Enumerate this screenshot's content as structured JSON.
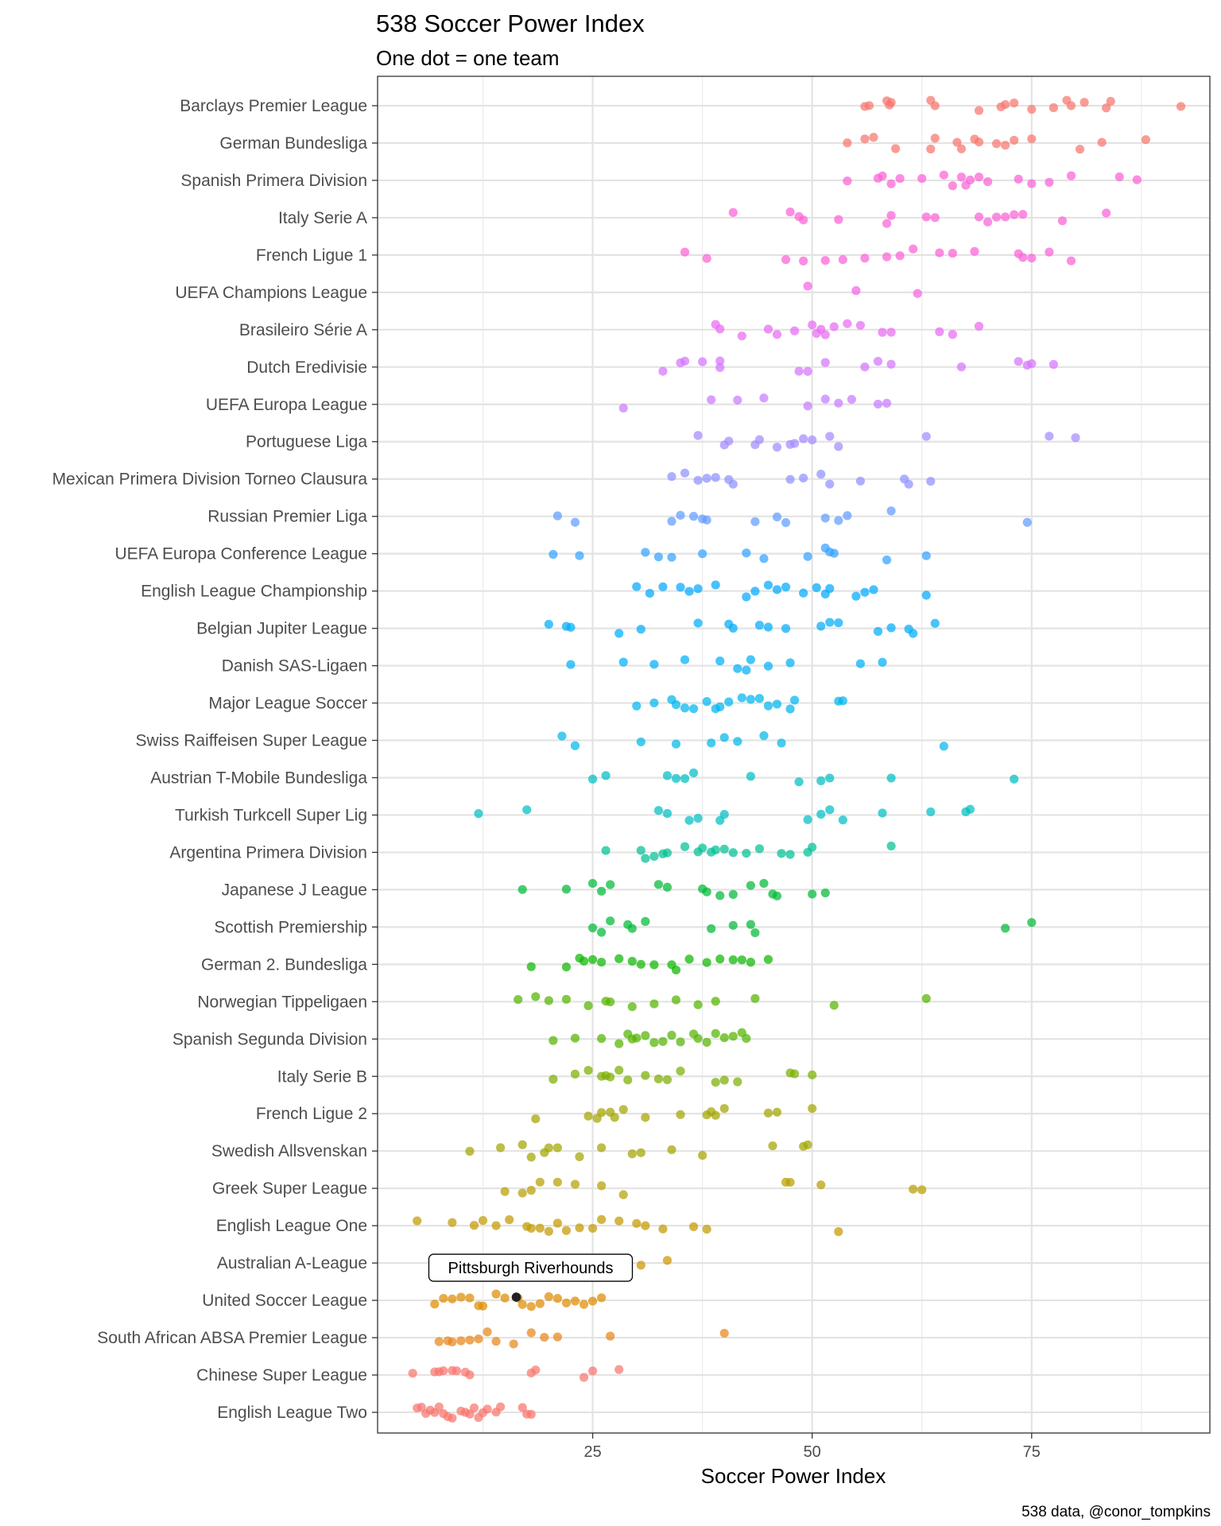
{
  "chart_data": {
    "type": "scatter",
    "title": "538 Soccer Power Index",
    "subtitle": "One dot = one team",
    "xlabel": "Soccer Power Index",
    "ylabel": "",
    "caption": "538 data, @conor_tompkins",
    "xlim": [
      0.5,
      95.3
    ],
    "xticks": [
      25,
      50,
      75
    ],
    "grid": true,
    "legend": "none",
    "annotation": {
      "text": "Pittsburgh Riverhounds",
      "league": "United Soccer League",
      "x": 16.3,
      "highlight_color": "#222222"
    },
    "categories": [
      {
        "name": "Barclays Premier League",
        "color": "#F8766D",
        "values": [
          56.5,
          56,
          58.5,
          59,
          58.8,
          64,
          63.5,
          69,
          71.5,
          72,
          73,
          75,
          77.5,
          79,
          79.5,
          81,
          83.5,
          84,
          92
        ]
      },
      {
        "name": "German Bundesliga",
        "color": "#F8766D",
        "values": [
          54,
          56,
          57,
          59.5,
          63.5,
          64,
          66.5,
          67,
          68.5,
          69,
          71,
          72,
          73,
          75,
          80.5,
          83,
          88
        ]
      },
      {
        "name": "Spanish Primera Division",
        "color": "#FB61D7",
        "values": [
          54,
          57.5,
          58,
          59,
          60,
          62.5,
          65,
          66,
          67,
          67.5,
          68,
          69,
          70,
          73.5,
          75,
          77,
          79.5,
          85,
          87
        ]
      },
      {
        "name": "Italy Serie A",
        "color": "#FB61D7",
        "values": [
          41,
          47.5,
          48.5,
          49,
          53,
          58.5,
          59,
          63,
          64,
          69,
          70,
          71,
          72,
          73,
          74,
          78.5,
          83.5
        ]
      },
      {
        "name": "French Ligue 1",
        "color": "#FB61D7",
        "values": [
          35.5,
          38,
          47,
          49,
          51.5,
          53.5,
          56,
          58.5,
          60,
          61.5,
          64.5,
          66,
          68.5,
          73.5,
          74,
          75,
          77,
          79.5
        ]
      },
      {
        "name": "UEFA Champions League",
        "color": "#F564E3",
        "values": [
          49.5,
          55,
          62
        ]
      },
      {
        "name": "Brasileiro Série A",
        "color": "#E76BF3",
        "values": [
          39.5,
          39,
          42,
          45,
          46,
          48,
          51,
          50,
          50.5,
          51.5,
          52.5,
          54,
          55.5,
          58,
          59,
          64.5,
          66,
          69
        ]
      },
      {
        "name": "Dutch Eredivisie",
        "color": "#D575FE",
        "values": [
          33,
          35,
          35.5,
          37.5,
          39.5,
          39.5,
          48.5,
          49.5,
          51.5,
          56,
          57.5,
          59,
          67,
          73.5,
          74.5,
          75,
          77.5
        ]
      },
      {
        "name": "UEFA Europa League",
        "color": "#C77CFF",
        "values": [
          28.5,
          38.5,
          41.5,
          44.5,
          49.5,
          51.5,
          53,
          54.5,
          57.5,
          58.5
        ]
      },
      {
        "name": "Portuguese Liga",
        "color": "#A58AFF",
        "values": [
          37,
          40,
          40.5,
          43.5,
          44,
          46,
          47.5,
          48,
          49,
          50,
          52,
          53,
          63,
          77,
          80
        ]
      },
      {
        "name": "Mexican Primera Division Torneo Clausura",
        "color": "#8F91FF",
        "values": [
          34,
          35.5,
          37,
          38,
          39,
          40.5,
          41,
          47.5,
          49,
          51,
          52,
          55.5,
          60.5,
          61,
          63.5
        ]
      },
      {
        "name": "Russian Premier Liga",
        "color": "#619CFF",
        "values": [
          21,
          23,
          34,
          35,
          36.5,
          37.5,
          38,
          43.5,
          46,
          47,
          51.5,
          53,
          54,
          59,
          74.5
        ]
      },
      {
        "name": "UEFA Europa Conference League",
        "color": "#35A2FF",
        "values": [
          20.5,
          23.5,
          31,
          32.5,
          34,
          37.5,
          42.5,
          44.5,
          49.5,
          51.5,
          52,
          52.5,
          58.5,
          63
        ]
      },
      {
        "name": "English League Championship",
        "color": "#00A9FF",
        "values": [
          30,
          31.5,
          33,
          35,
          36,
          37,
          39,
          42.5,
          43.5,
          45,
          46,
          47,
          49,
          50.5,
          51.5,
          52,
          55,
          56,
          57,
          63
        ]
      },
      {
        "name": "Belgian Jupiter League",
        "color": "#00ADFA",
        "values": [
          20,
          22,
          22.5,
          28,
          30.5,
          37,
          40.5,
          41,
          44,
          45,
          47,
          51,
          52,
          53,
          57.5,
          59,
          61,
          61.5,
          64
        ]
      },
      {
        "name": "Danish SAS-Ligaen",
        "color": "#00B0F6",
        "values": [
          22.5,
          28.5,
          32,
          35.5,
          39.5,
          41.5,
          42.5,
          43,
          45,
          47.5,
          55.5,
          58
        ]
      },
      {
        "name": "Major League Soccer",
        "color": "#00B5EE",
        "values": [
          30,
          32,
          34,
          34.5,
          35.5,
          36.5,
          38,
          39,
          39.5,
          40.5,
          42,
          43,
          44,
          45,
          46,
          47.5,
          48,
          53,
          53.5
        ]
      },
      {
        "name": "Swiss Raiffeisen Super League",
        "color": "#00B8E7",
        "values": [
          21.5,
          23,
          30.5,
          34.5,
          38.5,
          40,
          41.5,
          44.5,
          46.5,
          65
        ]
      },
      {
        "name": "Austrian T-Mobile Bundesliga",
        "color": "#00BFC4",
        "values": [
          25,
          26.5,
          33.5,
          34.5,
          35.5,
          36.5,
          43,
          48.5,
          51,
          52,
          59,
          73
        ]
      },
      {
        "name": "Turkish Turkcell Super Lig",
        "color": "#00BFC4",
        "values": [
          12,
          17.5,
          32.5,
          33.5,
          36,
          37,
          39.5,
          40,
          49.5,
          51,
          52,
          53.5,
          58,
          63.5,
          67.5,
          68
        ]
      },
      {
        "name": "Argentina Primera Division",
        "color": "#00C094",
        "values": [
          26.5,
          30.5,
          31,
          32,
          33,
          33.5,
          35.5,
          37,
          37.5,
          38.5,
          39,
          40,
          41,
          42.5,
          44,
          46.5,
          47.5,
          49.5,
          50,
          59
        ]
      },
      {
        "name": "Japanese J League",
        "color": "#00BA38",
        "values": [
          17,
          22,
          25,
          26,
          27,
          32.5,
          33.5,
          37.5,
          38,
          39.5,
          41,
          43,
          44.5,
          45.5,
          46,
          50,
          51.5
        ]
      },
      {
        "name": "Scottish Premiership",
        "color": "#00BA38",
        "values": [
          25,
          26,
          27,
          29,
          29.5,
          31,
          38.5,
          41,
          43,
          43.5,
          72,
          75
        ]
      },
      {
        "name": "German 2. Bundesliga",
        "color": "#0CB702",
        "values": [
          18,
          22,
          23.5,
          24,
          25,
          26,
          28,
          29.5,
          30.5,
          32,
          34,
          34.5,
          36,
          38,
          39.5,
          41,
          42,
          43,
          45
        ]
      },
      {
        "name": "Norwegian Tippeligaen",
        "color": "#53B400",
        "values": [
          16.5,
          18.5,
          20,
          22,
          24.5,
          26.5,
          27,
          29.5,
          32,
          34.5,
          37,
          39,
          43.5,
          52.5,
          63
        ]
      },
      {
        "name": "Spanish Segunda Division",
        "color": "#53B400",
        "values": [
          20.5,
          23,
          26,
          28,
          29,
          29.5,
          30,
          31,
          32,
          33,
          34,
          35,
          36.5,
          37,
          38,
          39,
          40,
          41,
          42,
          42.5
        ]
      },
      {
        "name": "Italy Serie B",
        "color": "#7CAE00",
        "values": [
          20.5,
          23,
          24.5,
          26,
          26.5,
          27,
          28,
          29,
          31,
          32.5,
          33.5,
          35,
          39,
          40,
          41.5,
          47.5,
          48,
          50
        ]
      },
      {
        "name": "French Ligue 2",
        "color": "#A3A500",
        "values": [
          18.5,
          24.5,
          25.5,
          26,
          27,
          27.5,
          28.5,
          31,
          35,
          38,
          38.5,
          39,
          40,
          45,
          46,
          50
        ]
      },
      {
        "name": "Swedish Allsvenskan",
        "color": "#A3A500",
        "values": [
          11,
          14.5,
          17,
          18,
          19.5,
          20,
          21,
          23.5,
          26,
          29.5,
          30.5,
          34,
          37.5,
          45.5,
          49,
          49.5
        ]
      },
      {
        "name": "Greek Super League",
        "color": "#B79F00",
        "values": [
          15,
          17,
          18,
          19,
          21,
          23,
          26,
          28.5,
          47,
          47.5,
          51,
          61.5,
          62.5
        ]
      },
      {
        "name": "English League One",
        "color": "#C49A00",
        "values": [
          5,
          9,
          11.5,
          12.5,
          14,
          15.5,
          17.5,
          18,
          19,
          20,
          21,
          22,
          23.5,
          25,
          26,
          28,
          30,
          31,
          33,
          36.5,
          38,
          53
        ]
      },
      {
        "name": "Australian A-League",
        "color": "#CD9600",
        "values": [
          12,
          22,
          25.5,
          30.5,
          33.5
        ]
      },
      {
        "name": "United Soccer League",
        "color": "#DE8C00",
        "values": [
          7,
          8,
          9,
          10,
          11,
          12,
          12.5,
          14,
          15,
          16.5,
          17,
          18,
          19,
          20,
          21,
          22,
          23,
          24,
          25,
          26
        ]
      },
      {
        "name": "South African ABSA Premier League",
        "color": "#E7861B",
        "values": [
          7.5,
          8.5,
          9,
          10,
          11,
          12,
          13,
          14,
          16,
          18,
          19.5,
          21,
          27,
          40
        ]
      },
      {
        "name": "Chinese Super League",
        "color": "#F8766D",
        "values": [
          4.5,
          7,
          7.5,
          8,
          9,
          9.5,
          10.5,
          11,
          18,
          18.5,
          24,
          25,
          28
        ]
      },
      {
        "name": "English League Two",
        "color": "#F8766D",
        "values": [
          5,
          5.5,
          6,
          6.5,
          7,
          7.5,
          8,
          8.5,
          9,
          10,
          10.5,
          11,
          11.5,
          12,
          12.5,
          13,
          14,
          14.5,
          17,
          17.5,
          18
        ]
      }
    ]
  }
}
